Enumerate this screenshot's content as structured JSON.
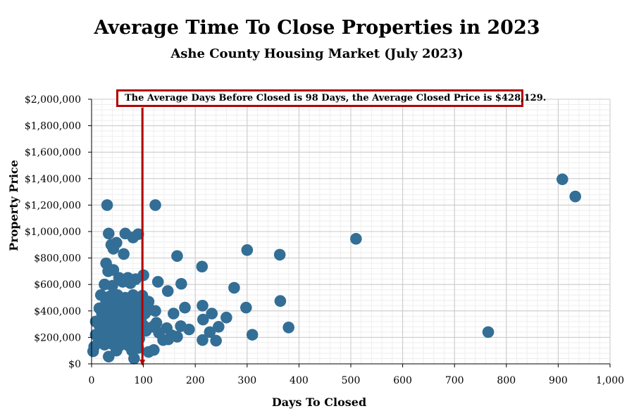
{
  "header": {
    "title": "Average Time To Close Properties in 2023",
    "subtitle": "Ashe County Housing Market (July 2023)"
  },
  "annotation": {
    "text": "The Average Days Before Closed is 98 Days, the Average Closed Price is $428,129.",
    "average_days": 98,
    "average_price": 428129,
    "line_color": "#b30000"
  },
  "chart_data": {
    "type": "scatter",
    "title": "Average Time To Close Properties in 2023",
    "subtitle": "Ashe County Housing Market (July 2023)",
    "xlabel": "Days To Closed",
    "ylabel": "Property Price",
    "xlim": [
      0,
      1000
    ],
    "ylim": [
      0,
      2000000
    ],
    "x_ticks": [
      0,
      100,
      200,
      300,
      400,
      500,
      600,
      700,
      800,
      900,
      1000
    ],
    "x_tick_labels": [
      "0",
      "100",
      "200",
      "300",
      "400",
      "500",
      "600",
      "700",
      "800",
      "900",
      "1,000"
    ],
    "y_ticks": [
      0,
      200000,
      400000,
      600000,
      800000,
      1000000,
      1200000,
      1400000,
      1600000,
      1800000,
      2000000
    ],
    "y_tick_labels": [
      "$0",
      "$200,000",
      "$400,000",
      "$600,000",
      "$800,000",
      "$1,000,000",
      "$1,200,000",
      "$1,400,000",
      "$1,600,000",
      "$1,800,000",
      "$2,000,000"
    ],
    "grid": true,
    "point_color": "#336e96",
    "vertical_reference_line": 98,
    "points": [
      [
        30,
        1200000
      ],
      [
        123,
        1200000
      ],
      [
        908,
        1395000
      ],
      [
        933,
        1265000
      ],
      [
        33,
        985000
      ],
      [
        65,
        985000
      ],
      [
        90,
        980000
      ],
      [
        80,
        955000
      ],
      [
        38,
        900000
      ],
      [
        48,
        915000
      ],
      [
        42,
        870000
      ],
      [
        62,
        830000
      ],
      [
        510,
        945000
      ],
      [
        300,
        860000
      ],
      [
        363,
        825000
      ],
      [
        165,
        815000
      ],
      [
        28,
        760000
      ],
      [
        42,
        710000
      ],
      [
        32,
        700000
      ],
      [
        53,
        650000
      ],
      [
        70,
        650000
      ],
      [
        85,
        640000
      ],
      [
        60,
        620000
      ],
      [
        25,
        600000
      ],
      [
        40,
        590000
      ],
      [
        75,
        610000
      ],
      [
        100,
        670000
      ],
      [
        128,
        620000
      ],
      [
        173,
        605000
      ],
      [
        213,
        735000
      ],
      [
        275,
        575000
      ],
      [
        147,
        550000
      ],
      [
        18,
        520000
      ],
      [
        35,
        510000
      ],
      [
        50,
        520000
      ],
      [
        65,
        500000
      ],
      [
        80,
        520000
      ],
      [
        98,
        515000
      ],
      [
        28,
        470000
      ],
      [
        45,
        470000
      ],
      [
        60,
        470000
      ],
      [
        72,
        460000
      ],
      [
        88,
        470000
      ],
      [
        110,
        470000
      ],
      [
        15,
        420000
      ],
      [
        30,
        430000
      ],
      [
        42,
        420000
      ],
      [
        55,
        440000
      ],
      [
        68,
        430000
      ],
      [
        78,
        440000
      ],
      [
        92,
        440000
      ],
      [
        112,
        410000
      ],
      [
        123,
        400000
      ],
      [
        180,
        425000
      ],
      [
        214,
        440000
      ],
      [
        298,
        425000
      ],
      [
        364,
        475000
      ],
      [
        20,
        380000
      ],
      [
        35,
        385000
      ],
      [
        48,
        380000
      ],
      [
        62,
        395000
      ],
      [
        75,
        380000
      ],
      [
        88,
        390000
      ],
      [
        103,
        380000
      ],
      [
        158,
        380000
      ],
      [
        232,
        380000
      ],
      [
        8,
        320000
      ],
      [
        22,
        335000
      ],
      [
        38,
        340000
      ],
      [
        52,
        350000
      ],
      [
        65,
        335000
      ],
      [
        80,
        330000
      ],
      [
        95,
        340000
      ],
      [
        125,
        310000
      ],
      [
        215,
        335000
      ],
      [
        260,
        350000
      ],
      [
        15,
        290000
      ],
      [
        30,
        300000
      ],
      [
        45,
        280000
      ],
      [
        58,
        290000
      ],
      [
        70,
        300000
      ],
      [
        85,
        285000
      ],
      [
        100,
        290000
      ],
      [
        118,
        280000
      ],
      [
        145,
        270000
      ],
      [
        172,
        285000
      ],
      [
        188,
        260000
      ],
      [
        245,
        280000
      ],
      [
        380,
        275000
      ],
      [
        8,
        220000
      ],
      [
        20,
        230000
      ],
      [
        32,
        240000
      ],
      [
        48,
        225000
      ],
      [
        60,
        235000
      ],
      [
        73,
        220000
      ],
      [
        88,
        240000
      ],
      [
        105,
        250000
      ],
      [
        130,
        235000
      ],
      [
        155,
        215000
      ],
      [
        165,
        205000
      ],
      [
        228,
        240000
      ],
      [
        310,
        220000
      ],
      [
        765,
        240000
      ],
      [
        14,
        180000
      ],
      [
        28,
        190000
      ],
      [
        42,
        175000
      ],
      [
        55,
        185000
      ],
      [
        68,
        180000
      ],
      [
        82,
        175000
      ],
      [
        92,
        190000
      ],
      [
        138,
        180000
      ],
      [
        148,
        185000
      ],
      [
        214,
        180000
      ],
      [
        240,
        175000
      ],
      [
        5,
        130000
      ],
      [
        25,
        145000
      ],
      [
        40,
        150000
      ],
      [
        55,
        140000
      ],
      [
        72,
        135000
      ],
      [
        90,
        120000
      ],
      [
        3,
        95000
      ],
      [
        48,
        100000
      ],
      [
        78,
        100000
      ],
      [
        110,
        90000
      ],
      [
        120,
        105000
      ],
      [
        33,
        55000
      ],
      [
        82,
        40000
      ]
    ]
  }
}
